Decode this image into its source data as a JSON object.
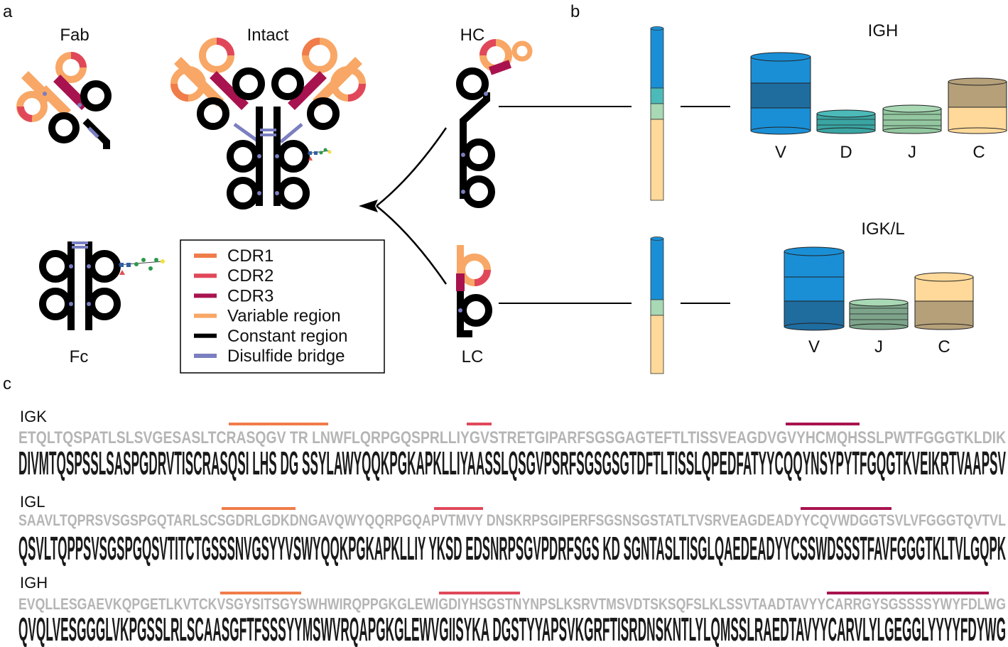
{
  "panels": {
    "a": "a",
    "b": "b",
    "c": "c"
  },
  "panel_a": {
    "fab": "Fab",
    "intact": "Intact",
    "fc": "Fc",
    "hc": "HC",
    "lc": "LC",
    "legend": [
      {
        "label": "CDR1",
        "color": "#f07c4a"
      },
      {
        "label": "CDR2",
        "color": "#e0485a"
      },
      {
        "label": "CDR3",
        "color": "#a8134f"
      },
      {
        "label": "Variable region",
        "color": "#f8a766"
      },
      {
        "label": "Constant region",
        "color": "#000000"
      },
      {
        "label": "Disulfide bridge",
        "color": "#7b7fc0"
      }
    ]
  },
  "panel_b": {
    "igh": {
      "title": "IGH",
      "segments": [
        "V",
        "D",
        "J",
        "C"
      ]
    },
    "igkl": {
      "title": "IGK/L",
      "segments": [
        "V",
        "J",
        "C"
      ]
    },
    "colors": {
      "V": "#1a8fd6",
      "D": "#4bbab8",
      "J": "#a8d8b4",
      "C": "#ffd99a"
    }
  },
  "panel_c": {
    "igk": {
      "label": "IGK",
      "consensus": "DIVMTQSPSSLSASPGDRVTISCRASQSI LHS DG SSYLAWYQQKPGKAPKLLIYAASSLQSGVPSRFSGSGSGTDFTLTISSLQPEDFATYYCQQYNSYPYTFGQGTKVEIKRTVAAPSV",
      "top": "ETQLTQSPATLSLSVGESASLTCRASQGV TR LNWFLQRPGQSPRLLIYGVSTRETGIPARFSGSGAGTEFTLTISSVEAGDVGVYHCMQHSSLPWTFGGGTKLDIK"
    },
    "igl": {
      "label": "IGL",
      "consensus": "QSVLTQPPSVSGSPGQSVTITCTGSSSNVGSYYVSWYQQKPGKAPKLLIY YKSD EDSNRPSGVPDRFSGS KD SGNTASLTISGLQAEDEADYYCSSWDSSSTFAVFGGGTKLTVLGQPK",
      "top": "SAAVLTQPRSVSGSPGQTARLSCSGDRLGDKDNGAVQWYQQRPGQAPVTMVY DNSKRPSGIPERFSGSNSGSTATLTVSRVEAGDEADYYCQVWDGGTSVLVFGGGTQVTVL"
    },
    "igh": {
      "label": "IGH",
      "consensus": "QVQLVESGGGLVKPGSSLRLSCAASGFTFSSSYYMSWVRQAPGKGLEWVGIISYKA DGSTYYAPSVKGRFTISRDNSKNTLYLQMSSLRAEDTAVYYCARVLYLGEGGLYYYYFDYWG",
      "top": "EVQLLESGAEVKQPGETLKVTCKVSGYSITSGYSWHWIRQPPGKGLEWIGDIYHSGSTNYNPSLKSRVTMSVDTSKSQFSLKLSSVTAADTAVYYCARRGYSGSSSSYWYFDLWG"
    }
  }
}
